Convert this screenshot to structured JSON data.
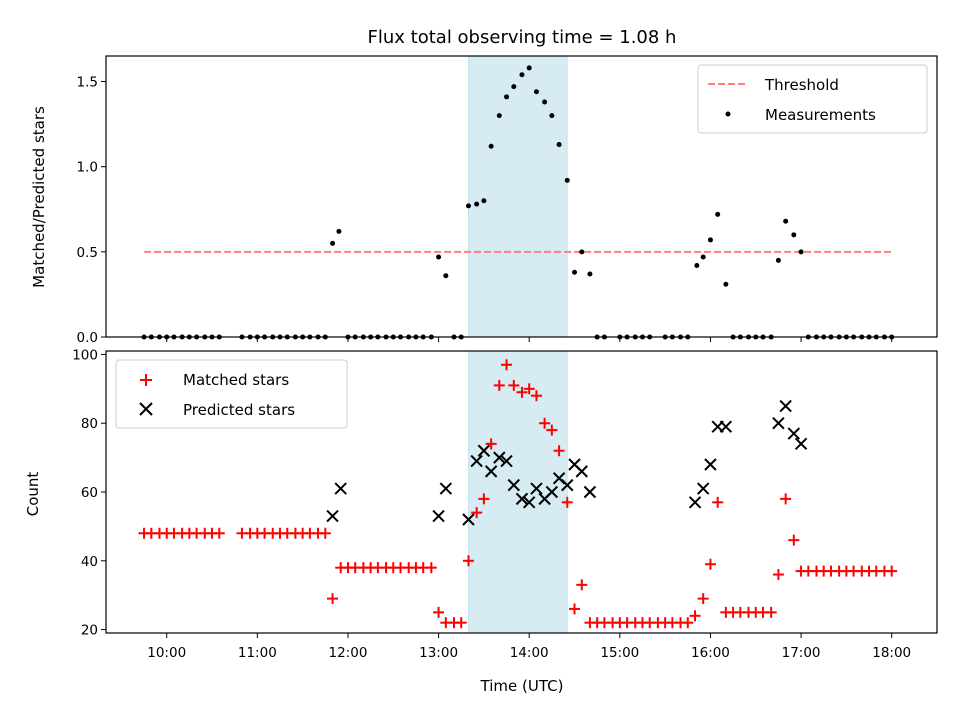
{
  "chart_data": [
    {
      "type": "scatter",
      "title": "Flux total observing time = 1.08 h",
      "xlabel": "",
      "ylabel": "Matched/Predicted stars",
      "xlim": [
        9.33,
        18.5
      ],
      "ylim": [
        0,
        1.65
      ],
      "yticks": [
        0.0,
        0.5,
        1.0,
        1.5
      ],
      "ytick_labels": [
        "0.0",
        "0.5",
        "1.0",
        "1.5"
      ],
      "xticks": [
        10,
        11,
        12,
        13,
        14,
        15,
        16,
        17,
        18
      ],
      "highlight_span": {
        "x": [
          13.33,
          14.42
        ],
        "color": "#add8e6"
      },
      "threshold": {
        "name": "Threshold",
        "value": 0.5,
        "x": [
          9.75,
          18.0
        ],
        "color": "#ff7f7f"
      },
      "legend": {
        "position": "upper right",
        "entries": [
          "Threshold",
          "Measurements"
        ]
      },
      "series": [
        {
          "name": "Measurements",
          "color": "#000000",
          "marker": "dot",
          "points": [
            [
              9.75,
              0
            ],
            [
              9.83,
              0
            ],
            [
              9.92,
              0
            ],
            [
              10.0,
              0
            ],
            [
              10.08,
              0
            ],
            [
              10.17,
              0
            ],
            [
              10.25,
              0
            ],
            [
              10.33,
              0
            ],
            [
              10.42,
              0
            ],
            [
              10.5,
              0
            ],
            [
              10.58,
              0
            ],
            [
              10.83,
              0
            ],
            [
              10.92,
              0
            ],
            [
              11.0,
              0
            ],
            [
              11.08,
              0
            ],
            [
              11.17,
              0
            ],
            [
              11.25,
              0
            ],
            [
              11.33,
              0
            ],
            [
              11.42,
              0
            ],
            [
              11.5,
              0
            ],
            [
              11.58,
              0
            ],
            [
              11.67,
              0
            ],
            [
              11.75,
              0
            ],
            [
              11.83,
              0.55
            ],
            [
              11.9,
              0.62
            ],
            [
              12.0,
              0
            ],
            [
              12.08,
              0
            ],
            [
              12.17,
              0
            ],
            [
              12.25,
              0
            ],
            [
              12.33,
              0
            ],
            [
              12.42,
              0
            ],
            [
              12.5,
              0
            ],
            [
              12.58,
              0
            ],
            [
              12.67,
              0
            ],
            [
              12.75,
              0
            ],
            [
              12.83,
              0
            ],
            [
              12.92,
              0
            ],
            [
              13.0,
              0.47
            ],
            [
              13.08,
              0.36
            ],
            [
              13.17,
              0
            ],
            [
              13.25,
              0
            ],
            [
              13.33,
              0.77
            ],
            [
              13.42,
              0.78
            ],
            [
              13.5,
              0.8
            ],
            [
              13.58,
              1.12
            ],
            [
              13.67,
              1.3
            ],
            [
              13.75,
              1.41
            ],
            [
              13.83,
              1.47
            ],
            [
              13.92,
              1.54
            ],
            [
              14.0,
              1.58
            ],
            [
              14.08,
              1.44
            ],
            [
              14.17,
              1.38
            ],
            [
              14.25,
              1.3
            ],
            [
              14.33,
              1.13
            ],
            [
              14.42,
              0.92
            ],
            [
              14.5,
              0.38
            ],
            [
              14.58,
              0.5
            ],
            [
              14.67,
              0.37
            ],
            [
              14.75,
              0
            ],
            [
              14.83,
              0
            ],
            [
              15.0,
              0
            ],
            [
              15.08,
              0
            ],
            [
              15.17,
              0
            ],
            [
              15.25,
              0
            ],
            [
              15.33,
              0
            ],
            [
              15.5,
              0
            ],
            [
              15.58,
              0
            ],
            [
              15.67,
              0
            ],
            [
              15.75,
              0
            ],
            [
              15.85,
              0.42
            ],
            [
              15.92,
              0.47
            ],
            [
              16.0,
              0.57
            ],
            [
              16.08,
              0.72
            ],
            [
              16.17,
              0.31
            ],
            [
              16.25,
              0
            ],
            [
              16.33,
              0
            ],
            [
              16.42,
              0
            ],
            [
              16.5,
              0
            ],
            [
              16.58,
              0
            ],
            [
              16.67,
              0
            ],
            [
              16.75,
              0.45
            ],
            [
              16.83,
              0.68
            ],
            [
              16.92,
              0.6
            ],
            [
              17.0,
              0.5
            ],
            [
              17.08,
              0
            ],
            [
              17.17,
              0
            ],
            [
              17.25,
              0
            ],
            [
              17.33,
              0
            ],
            [
              17.42,
              0
            ],
            [
              17.5,
              0
            ],
            [
              17.58,
              0
            ],
            [
              17.67,
              0
            ],
            [
              17.75,
              0
            ],
            [
              17.83,
              0
            ],
            [
              17.92,
              0
            ],
            [
              18.0,
              0
            ]
          ]
        }
      ]
    },
    {
      "type": "scatter",
      "title": "",
      "xlabel": "Time (UTC)",
      "ylabel": "Count",
      "xlim": [
        9.33,
        18.5
      ],
      "ylim": [
        19,
        101
      ],
      "yticks": [
        20,
        40,
        60,
        80,
        100
      ],
      "ytick_labels": [
        "20",
        "40",
        "60",
        "80",
        "100"
      ],
      "xticks": [
        10,
        11,
        12,
        13,
        14,
        15,
        16,
        17,
        18
      ],
      "xtick_labels": [
        "10:00",
        "11:00",
        "12:00",
        "13:00",
        "14:00",
        "15:00",
        "16:00",
        "17:00",
        "18:00"
      ],
      "highlight_span": {
        "x": [
          13.33,
          14.42
        ],
        "color": "#add8e6"
      },
      "legend": {
        "position": "upper left",
        "entries": [
          "Matched stars",
          "Predicted stars"
        ]
      },
      "series": [
        {
          "name": "Matched stars",
          "color": "#ff0000",
          "marker": "plus",
          "points": [
            [
              9.75,
              48
            ],
            [
              9.83,
              48
            ],
            [
              9.92,
              48
            ],
            [
              10.0,
              48
            ],
            [
              10.08,
              48
            ],
            [
              10.17,
              48
            ],
            [
              10.25,
              48
            ],
            [
              10.33,
              48
            ],
            [
              10.42,
              48
            ],
            [
              10.5,
              48
            ],
            [
              10.58,
              48
            ],
            [
              10.83,
              48
            ],
            [
              10.92,
              48
            ],
            [
              11.0,
              48
            ],
            [
              11.08,
              48
            ],
            [
              11.17,
              48
            ],
            [
              11.25,
              48
            ],
            [
              11.33,
              48
            ],
            [
              11.42,
              48
            ],
            [
              11.5,
              48
            ],
            [
              11.58,
              48
            ],
            [
              11.67,
              48
            ],
            [
              11.75,
              48
            ],
            [
              11.83,
              29
            ],
            [
              11.92,
              38
            ],
            [
              12.0,
              38
            ],
            [
              12.08,
              38
            ],
            [
              12.17,
              38
            ],
            [
              12.25,
              38
            ],
            [
              12.33,
              38
            ],
            [
              12.42,
              38
            ],
            [
              12.5,
              38
            ],
            [
              12.58,
              38
            ],
            [
              12.67,
              38
            ],
            [
              12.75,
              38
            ],
            [
              12.83,
              38
            ],
            [
              12.92,
              38
            ],
            [
              13.0,
              25
            ],
            [
              13.08,
              22
            ],
            [
              13.17,
              22
            ],
            [
              13.25,
              22
            ],
            [
              13.33,
              40
            ],
            [
              13.42,
              54
            ],
            [
              13.5,
              58
            ],
            [
              13.58,
              74
            ],
            [
              13.67,
              91
            ],
            [
              13.75,
              97
            ],
            [
              13.83,
              91
            ],
            [
              13.92,
              89
            ],
            [
              14.0,
              90
            ],
            [
              14.08,
              88
            ],
            [
              14.17,
              80
            ],
            [
              14.25,
              78
            ],
            [
              14.33,
              72
            ],
            [
              14.42,
              57
            ],
            [
              14.5,
              26
            ],
            [
              14.58,
              33
            ],
            [
              14.67,
              22
            ],
            [
              14.75,
              22
            ],
            [
              14.83,
              22
            ],
            [
              14.92,
              22
            ],
            [
              15.0,
              22
            ],
            [
              15.08,
              22
            ],
            [
              15.17,
              22
            ],
            [
              15.25,
              22
            ],
            [
              15.33,
              22
            ],
            [
              15.42,
              22
            ],
            [
              15.5,
              22
            ],
            [
              15.58,
              22
            ],
            [
              15.67,
              22
            ],
            [
              15.75,
              22
            ],
            [
              15.83,
              24
            ],
            [
              15.92,
              29
            ],
            [
              16.0,
              39
            ],
            [
              16.08,
              57
            ],
            [
              16.17,
              25
            ],
            [
              16.25,
              25
            ],
            [
              16.33,
              25
            ],
            [
              16.42,
              25
            ],
            [
              16.5,
              25
            ],
            [
              16.58,
              25
            ],
            [
              16.67,
              25
            ],
            [
              16.75,
              36
            ],
            [
              16.83,
              58
            ],
            [
              16.92,
              46
            ],
            [
              17.0,
              37
            ],
            [
              17.08,
              37
            ],
            [
              17.17,
              37
            ],
            [
              17.25,
              37
            ],
            [
              17.33,
              37
            ],
            [
              17.42,
              37
            ],
            [
              17.5,
              37
            ],
            [
              17.58,
              37
            ],
            [
              17.67,
              37
            ],
            [
              17.75,
              37
            ],
            [
              17.83,
              37
            ],
            [
              17.92,
              37
            ],
            [
              18.0,
              37
            ]
          ]
        },
        {
          "name": "Predicted stars",
          "color": "#000000",
          "marker": "x",
          "points": [
            [
              11.83,
              53
            ],
            [
              11.92,
              61
            ],
            [
              13.0,
              53
            ],
            [
              13.08,
              61
            ],
            [
              13.33,
              52
            ],
            [
              13.42,
              69
            ],
            [
              13.5,
              72
            ],
            [
              13.58,
              66
            ],
            [
              13.67,
              70
            ],
            [
              13.75,
              69
            ],
            [
              13.83,
              62
            ],
            [
              13.92,
              58
            ],
            [
              14.0,
              57
            ],
            [
              14.08,
              61
            ],
            [
              14.17,
              58
            ],
            [
              14.25,
              60
            ],
            [
              14.33,
              64
            ],
            [
              14.42,
              62
            ],
            [
              14.5,
              68
            ],
            [
              14.58,
              66
            ],
            [
              14.67,
              60
            ],
            [
              15.83,
              57
            ],
            [
              15.92,
              61
            ],
            [
              16.0,
              68
            ],
            [
              16.08,
              79
            ],
            [
              16.17,
              79
            ],
            [
              16.75,
              80
            ],
            [
              16.83,
              85
            ],
            [
              16.92,
              77
            ],
            [
              17.0,
              74
            ]
          ]
        }
      ]
    }
  ]
}
